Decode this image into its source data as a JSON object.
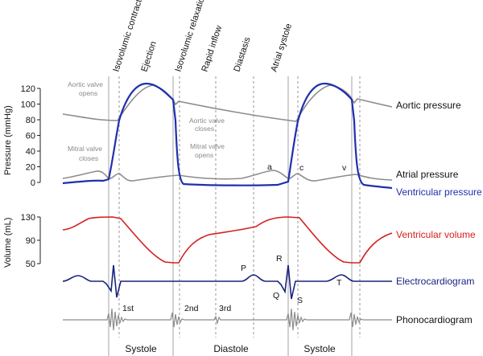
{
  "phases": {
    "isovolumic_contraction": "Isovolumic contraction",
    "ejection": "Ejection",
    "isovolumic_relaxation": "Isovolumic relaxation",
    "rapid_inflow": "Rapid inflow",
    "diastasis": "Diastasis",
    "atrial_systole": "Atrial systole"
  },
  "axes": {
    "pressure_label": "Pressure (mmHg)",
    "pressure_ticks": [
      "120",
      "100",
      "80",
      "60",
      "40",
      "20",
      "0"
    ],
    "volume_label": "Volume (mL)",
    "volume_ticks": [
      "130",
      "90",
      "50"
    ]
  },
  "valve_events": {
    "aortic_opens_1": "Aortic valve",
    "aortic_opens_2": "opens",
    "aortic_closes_1": "Aortic valve",
    "aortic_closes_2": "closes",
    "mitral_closes_1": "Mitral valve",
    "mitral_closes_2": "closes",
    "mitral_opens_1": "Mitral valve",
    "mitral_opens_2": "opens"
  },
  "wave_labels": {
    "a": "a",
    "c": "c",
    "v": "v",
    "P": "P",
    "Q": "Q",
    "R": "R",
    "S": "S",
    "T": "T"
  },
  "heart_sounds": {
    "first": "1st",
    "second": "2nd",
    "third": "3rd"
  },
  "traces": {
    "aortic_pressure": "Aortic pressure",
    "atrial_pressure": "Atrial pressure",
    "ventricular_pressure": "Ventricular pressure",
    "ventricular_volume": "Ventricular volume",
    "electrocardiogram": "Electrocardiogram",
    "phonocardiogram": "Phonocardiogram"
  },
  "bottom_phases": {
    "systole_1": "Systole",
    "diastole": "Diastole",
    "systole_2": "Systole"
  },
  "colors": {
    "ventricular_pressure": "#1f2fae",
    "ventricular_volume": "#d42020",
    "aortic_pressure": "#8c8c8c",
    "atrial_pressure": "#8c8c8c",
    "electrocardiogram": "#1a237e",
    "phonocardiogram": "#8c8c8c"
  }
}
